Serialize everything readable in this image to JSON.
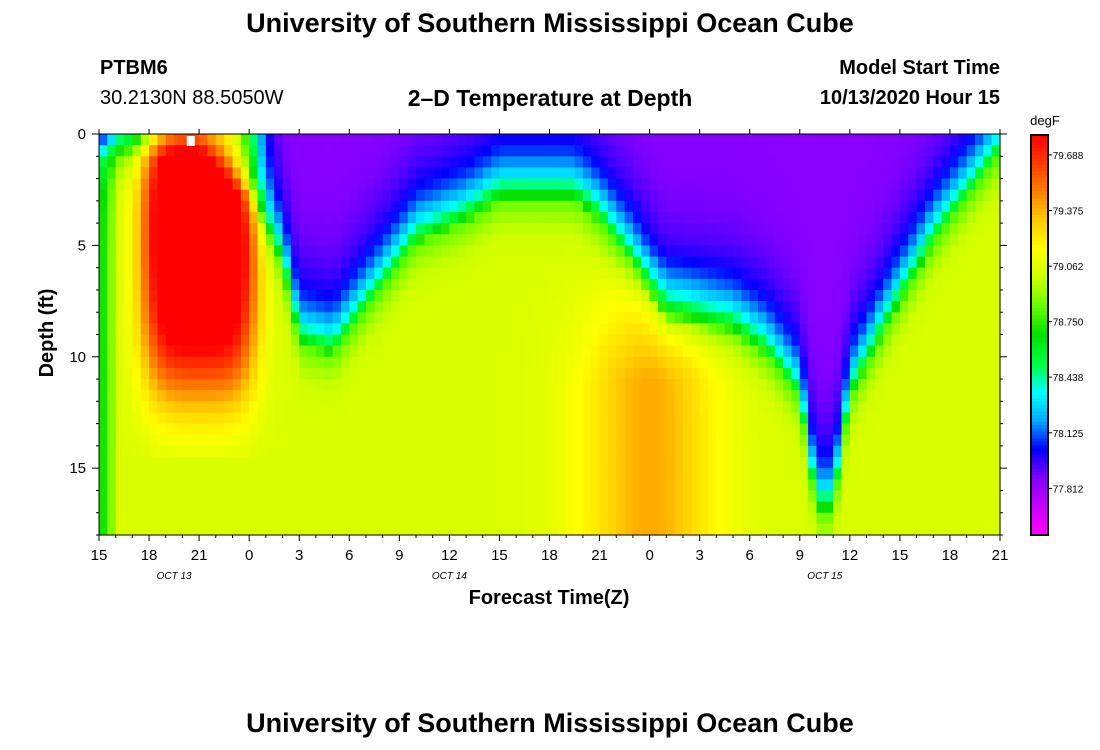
{
  "page": {
    "title": "University of Southern Mississippi Ocean Cube",
    "footer_title": "University of Southern Mississippi Ocean Cube",
    "station_id": "PTBM6",
    "station_coords": "30.2130N 88.5050W",
    "plot_title": "2–D Temperature at Depth",
    "model_start_label": "Model Start Time",
    "model_start_value": "10/13/2020 Hour 15"
  },
  "chart_data": {
    "type": "heatmap",
    "title": "2–D Temperature at Depth",
    "xlabel": "Forecast Time(Z)",
    "ylabel": "Depth (ft)",
    "x_range_hours": [
      0,
      54
    ],
    "y_range_ft": [
      0,
      18
    ],
    "x_tick_labels": [
      "15",
      "18",
      "21",
      "0",
      "3",
      "6",
      "9",
      "12",
      "15",
      "18",
      "21",
      "0",
      "3",
      "6",
      "9",
      "12",
      "15",
      "18",
      "21"
    ],
    "y_ticks": [
      0,
      5,
      10,
      15
    ],
    "y_tick_labels": [
      "0",
      "5",
      "10",
      "15"
    ],
    "date_labels": [
      {
        "label": "OCT 13",
        "hour": 4.5
      },
      {
        "label": "OCT 14",
        "hour": 21
      },
      {
        "label": "OCT 15",
        "hour": 43.5
      }
    ],
    "colorbar": {
      "unit": "degF",
      "range": [
        77.55,
        79.8
      ],
      "tick_values": [
        79.688,
        79.375,
        79.062,
        78.75,
        78.438,
        78.125,
        77.812
      ],
      "tick_labels": [
        "79.688",
        "79.375",
        "79.062",
        "78.750",
        "78.438",
        "78.125",
        "77.812"
      ],
      "colors": [
        "#ff00ff",
        "#c800ff",
        "#8000ff",
        "#0000ff",
        "#00aaff",
        "#00ffff",
        "#00ff40",
        "#00e000",
        "#66ff00",
        "#ccff00",
        "#ffff00",
        "#ffcc00",
        "#ff8000",
        "#ff3c00",
        "#ff0000"
      ]
    },
    "cold_depth_profile": {
      "x_hours": [
        0,
        3,
        6,
        9,
        11,
        12,
        14,
        17,
        19,
        22,
        24,
        27,
        28.5,
        30,
        32,
        34,
        38,
        40,
        42,
        43,
        44,
        45,
        47,
        50,
        54
      ],
      "depth_ft": [
        1,
        1,
        1,
        3,
        6,
        9.5,
        10,
        7,
        5,
        4,
        3,
        3,
        3,
        4,
        6,
        8.5,
        9,
        10,
        12,
        17,
        17,
        12,
        9,
        5,
        1
      ]
    },
    "warm_core": {
      "center_hour": 6,
      "temp_degF": 79.75
    },
    "warm_marker_hour": 5.5,
    "deep_warm_zone": {
      "center_hour": 33,
      "temp_degF": 79.2
    }
  }
}
